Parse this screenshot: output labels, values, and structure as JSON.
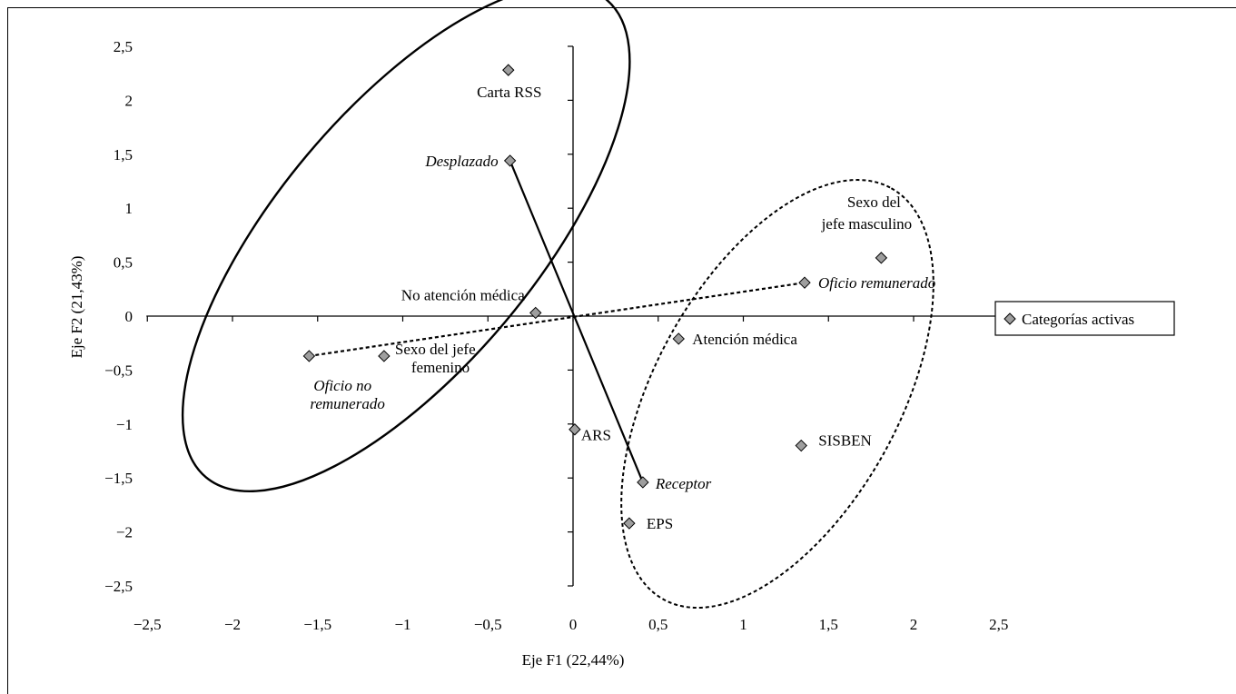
{
  "chart_data": {
    "type": "scatter",
    "xlabel": "Eje F1 (22,44%)",
    "ylabel": "Eje F2 (21,43%)",
    "xlim": [
      -2.5,
      2.5
    ],
    "ylim": [
      -2.5,
      2.5
    ],
    "x_ticks": [
      "−2,5",
      "−2",
      "−1,5",
      "−1",
      "−0,5",
      "0",
      "0,5",
      "1",
      "1,5",
      "2",
      "2,5"
    ],
    "y_ticks": [
      "2,5",
      "2",
      "1,5",
      "1",
      "0,5",
      "0",
      "−0,5",
      "−1",
      "−1,5",
      "−2",
      "−2,5"
    ],
    "legend": {
      "label": "Categorías activas",
      "placement": "right"
    },
    "marker_color": "#9e9e9e",
    "points": [
      {
        "id": "carta",
        "label": "Carta RSS",
        "x": -0.38,
        "y": 2.28,
        "italic": false
      },
      {
        "id": "desplazado",
        "label": "Desplazado",
        "x": -0.37,
        "y": 1.44,
        "italic": true
      },
      {
        "id": "noatencion",
        "label": "No atención médica",
        "x": -0.22,
        "y": 0.03,
        "italic": false
      },
      {
        "id": "oficiono",
        "label_lines": [
          "Oficio no",
          "remunerado"
        ],
        "x": -1.55,
        "y": -0.37,
        "italic": true
      },
      {
        "id": "sexofem",
        "label_lines": [
          "Sexo del jefe",
          "femenino"
        ],
        "x": -1.11,
        "y": -0.37,
        "italic": false
      },
      {
        "id": "sexomasc",
        "label_lines": [
          "Sexo del",
          "jefe masculino"
        ],
        "x": 1.81,
        "y": 0.54,
        "italic": false
      },
      {
        "id": "oficiorem",
        "label": "Oficio remunerado",
        "x": 1.36,
        "y": 0.31,
        "italic": true
      },
      {
        "id": "atencion",
        "label": "Atención médica",
        "x": 0.62,
        "y": -0.21,
        "italic": false
      },
      {
        "id": "ars",
        "label": "ARS",
        "x": 0.01,
        "y": -1.05,
        "italic": false
      },
      {
        "id": "sisben",
        "label": "SISBEN",
        "x": 1.34,
        "y": -1.2,
        "italic": false
      },
      {
        "id": "receptor",
        "label": "Receptor",
        "x": 0.41,
        "y": -1.54,
        "italic": true
      },
      {
        "id": "eps",
        "label": "EPS",
        "x": 0.33,
        "y": -1.92,
        "italic": false
      }
    ],
    "connectors": [
      {
        "from": "desplazado",
        "to": "receptor",
        "style": "solid"
      },
      {
        "from": "oficiono",
        "to": "oficiorem",
        "style": "dashed"
      }
    ],
    "ellipses": [
      {
        "style": "solid",
        "cx": -0.98,
        "cy": 0.72,
        "rx": 1.83,
        "ry": 1.2,
        "rotation": -50
      },
      {
        "style": "dashed",
        "cx": 1.2,
        "cy": -0.72,
        "rx": 1.38,
        "ry": 1.13,
        "rotation": -61
      }
    ]
  }
}
